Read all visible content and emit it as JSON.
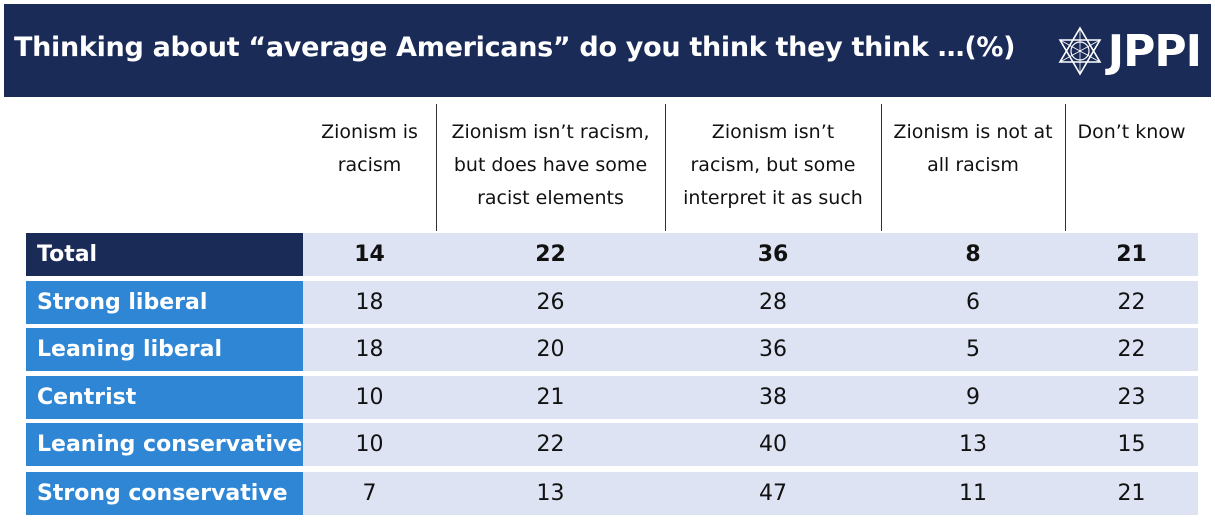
{
  "title": "Thinking about “average Americans” do you think they think …(%)",
  "logo_text": "JPPI",
  "chart_data": {
    "type": "table",
    "columns": [
      "Zionism is racism",
      "Zionism isn’t racism, but does have some racist elements",
      "Zionism isn’t racism, but some interpret it as such",
      "Zionism is not at all racism",
      "Don’t know"
    ],
    "column_lines": [
      [
        "Zionism is",
        "racism"
      ],
      [
        "Zionism isn’t racism,",
        "but does have some",
        "racist elements"
      ],
      [
        "Zionism isn’t",
        "racism, but some",
        "interpret it as such"
      ],
      [
        "Zionism is not at",
        "all racism"
      ],
      [
        "Don’t know"
      ]
    ],
    "rows": [
      {
        "label": "Total",
        "values": [
          14,
          22,
          36,
          8,
          21
        ]
      },
      {
        "label": "Strong liberal",
        "values": [
          18,
          26,
          28,
          6,
          22
        ]
      },
      {
        "label": "Leaning liberal",
        "values": [
          18,
          20,
          36,
          5,
          22
        ]
      },
      {
        "label": "Centrist",
        "values": [
          10,
          21,
          38,
          9,
          23
        ]
      },
      {
        "label": "Leaning conservative",
        "values": [
          10,
          22,
          40,
          13,
          15
        ]
      },
      {
        "label": "Strong conservative",
        "values": [
          7,
          13,
          47,
          11,
          21
        ]
      }
    ]
  },
  "colors": {
    "header": "#1b2b58",
    "row_label": "#2e86d4",
    "cell_bg": "#dde3f3"
  }
}
